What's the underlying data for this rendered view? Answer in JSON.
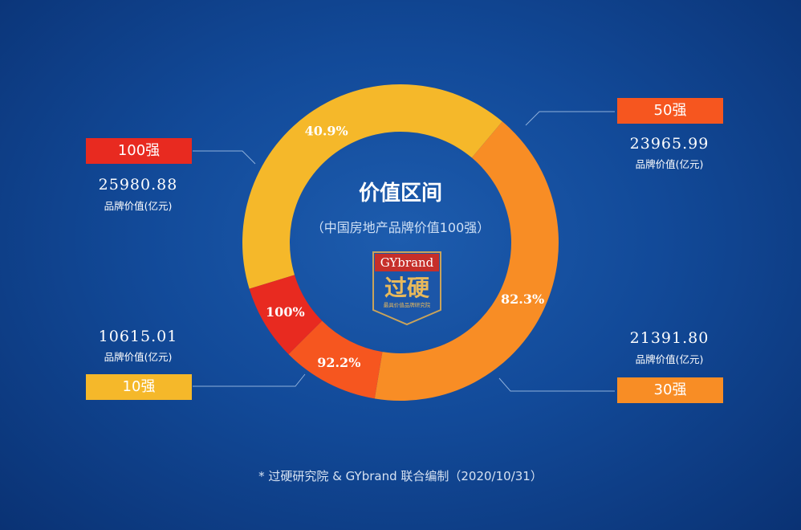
{
  "chart_data": {
    "type": "pie",
    "title": "价值区间",
    "subtitle": "（中国房地产品牌价值100强）",
    "slices": [
      {
        "label": "10强",
        "value": 10615.01,
        "percent_label": "40.9%",
        "color": "#f5b82a"
      },
      {
        "label": "30强",
        "value": 10776.79,
        "percent_label": "82.3%",
        "color": "#f88d25"
      },
      {
        "label": "50强",
        "value": 2574.19,
        "percent_label": "92.2%",
        "color": "#f6561f"
      },
      {
        "label": "100强",
        "value": 2014.89,
        "percent_label": "100%",
        "color": "#e82a20"
      }
    ],
    "cumulative": [
      {
        "label": "100强",
        "value": "25980.88",
        "unit": "品牌价值(亿元)",
        "color": "#e82a20"
      },
      {
        "label": "50强",
        "value": "23965.99",
        "unit": "品牌价值(亿元)",
        "color": "#f6561f"
      },
      {
        "label": "30强",
        "value": "21391.80",
        "unit": "品牌价值(亿元)",
        "color": "#f88d25"
      },
      {
        "label": "10强",
        "value": "10615.01",
        "unit": "品牌价值(亿元)",
        "color": "#f5b82a"
      }
    ]
  },
  "logo": {
    "brand": "GYbrand",
    "name": "过硬",
    "tagline": "最具价值品牌研究院"
  },
  "footer": "*  过硬研究院 & GYbrand 联合编制（2020/10/31）"
}
